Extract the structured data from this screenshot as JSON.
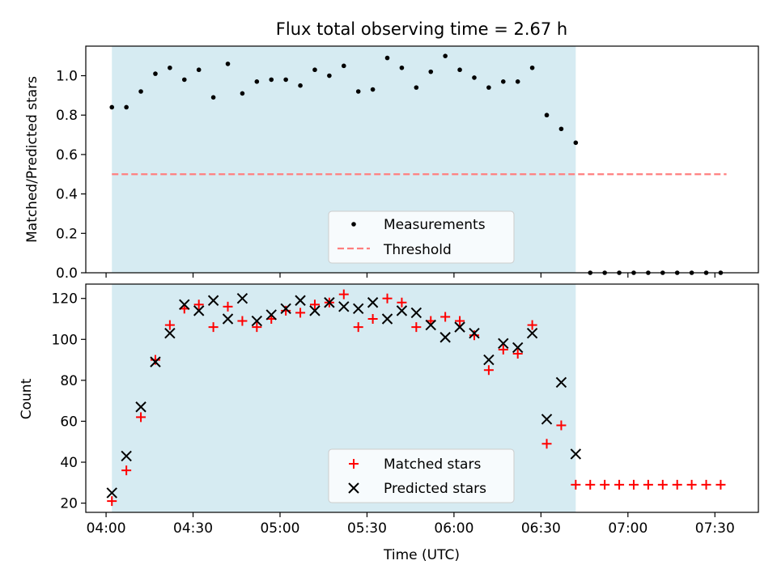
{
  "title": "Flux total observing time = 2.67 h",
  "colors": {
    "span": "#add8e6",
    "measurement": "#000000",
    "threshold": "#ff7f7f",
    "matched": "#ff0000",
    "predicted": "#000000"
  },
  "chart_data": [
    {
      "type": "scatter",
      "name": "ratio-panel",
      "ylabel": "Matched/Predicted stars",
      "ylim": [
        0,
        1.15
      ],
      "yticks": [
        0.0,
        0.2,
        0.4,
        0.6,
        0.8,
        1.0
      ],
      "ytick_labels": [
        "0.0",
        "0.2",
        "0.4",
        "0.6",
        "0.8",
        "1.0"
      ],
      "span": [
        "04:02",
        "06:42"
      ],
      "legend": {
        "position": "lower-center",
        "entries": [
          "Measurements",
          "Threshold"
        ]
      },
      "threshold": {
        "name": "Threshold",
        "value": 0.5,
        "x": [
          "04:02",
          "07:34"
        ]
      },
      "series": [
        {
          "name": "Measurements",
          "marker": "dot",
          "x": [
            "04:02",
            "04:07",
            "04:12",
            "04:17",
            "04:22",
            "04:27",
            "04:32",
            "04:37",
            "04:42",
            "04:47",
            "04:52",
            "04:57",
            "05:02",
            "05:07",
            "05:12",
            "05:17",
            "05:22",
            "05:27",
            "05:32",
            "05:37",
            "05:42",
            "05:47",
            "05:52",
            "05:57",
            "06:02",
            "06:07",
            "06:12",
            "06:17",
            "06:22",
            "06:27",
            "06:32",
            "06:37",
            "06:42",
            "06:47",
            "06:52",
            "06:57",
            "07:02",
            "07:07",
            "07:12",
            "07:17",
            "07:22",
            "07:27",
            "07:32"
          ],
          "values": [
            0.84,
            0.84,
            0.92,
            1.01,
            1.04,
            0.98,
            1.03,
            0.89,
            1.06,
            0.91,
            0.97,
            0.98,
            0.98,
            0.95,
            1.03,
            1.0,
            1.05,
            0.92,
            0.93,
            1.09,
            1.04,
            0.94,
            1.02,
            1.1,
            1.03,
            0.99,
            0.94,
            0.97,
            0.97,
            1.04,
            0.8,
            0.73,
            0.66,
            0,
            0,
            0,
            0,
            0,
            0,
            0,
            0,
            0,
            0
          ]
        }
      ]
    },
    {
      "type": "scatter",
      "name": "count-panel",
      "xlabel": "Time (UTC)",
      "ylabel": "Count",
      "ylim": [
        15.5,
        127
      ],
      "yticks": [
        20,
        40,
        60,
        80,
        100,
        120
      ],
      "ytick_labels": [
        "20",
        "40",
        "60",
        "80",
        "100",
        "120"
      ],
      "xlim": [
        "03:53",
        "07:45"
      ],
      "xticks": [
        "04:00",
        "04:30",
        "05:00",
        "05:30",
        "06:00",
        "06:30",
        "07:00",
        "07:30"
      ],
      "span": [
        "04:02",
        "06:42"
      ],
      "legend": {
        "position": "lower-center",
        "entries": [
          "Matched stars",
          "Predicted stars"
        ]
      },
      "series": [
        {
          "name": "Matched stars",
          "marker": "plus",
          "x": [
            "04:02",
            "04:07",
            "04:12",
            "04:17",
            "04:22",
            "04:27",
            "04:32",
            "04:37",
            "04:42",
            "04:47",
            "04:52",
            "04:57",
            "05:02",
            "05:07",
            "05:12",
            "05:17",
            "05:22",
            "05:27",
            "05:32",
            "05:37",
            "05:42",
            "05:47",
            "05:52",
            "05:57",
            "06:02",
            "06:07",
            "06:12",
            "06:17",
            "06:22",
            "06:27",
            "06:32",
            "06:37",
            "06:42",
            "06:47",
            "06:52",
            "06:57",
            "07:02",
            "07:07",
            "07:12",
            "07:17",
            "07:22",
            "07:27",
            "07:32"
          ],
          "values": [
            21,
            36,
            62,
            90,
            107,
            115,
            117,
            106,
            116,
            109,
            106,
            110,
            114,
            113,
            117,
            118,
            122,
            106,
            110,
            120,
            118,
            106,
            109,
            111,
            109,
            102,
            85,
            95,
            93,
            107,
            49,
            58,
            29,
            29,
            29,
            29,
            29,
            29,
            29,
            29,
            29,
            29,
            29
          ]
        },
        {
          "name": "Predicted stars",
          "marker": "x",
          "x": [
            "04:02",
            "04:07",
            "04:12",
            "04:17",
            "04:22",
            "04:27",
            "04:32",
            "04:37",
            "04:42",
            "04:47",
            "04:52",
            "04:57",
            "05:02",
            "05:07",
            "05:12",
            "05:17",
            "05:22",
            "05:27",
            "05:32",
            "05:37",
            "05:42",
            "05:47",
            "05:52",
            "05:57",
            "06:02",
            "06:07",
            "06:12",
            "06:17",
            "06:22",
            "06:27",
            "06:32",
            "06:37",
            "06:42"
          ],
          "values": [
            25,
            43,
            67,
            89,
            103,
            117,
            114,
            119,
            110,
            120,
            109,
            112,
            115,
            119,
            114,
            118,
            116,
            115,
            118,
            110,
            114,
            113,
            107,
            101,
            106,
            103,
            90,
            98,
            96,
            103,
            61,
            79,
            44
          ]
        }
      ]
    }
  ]
}
